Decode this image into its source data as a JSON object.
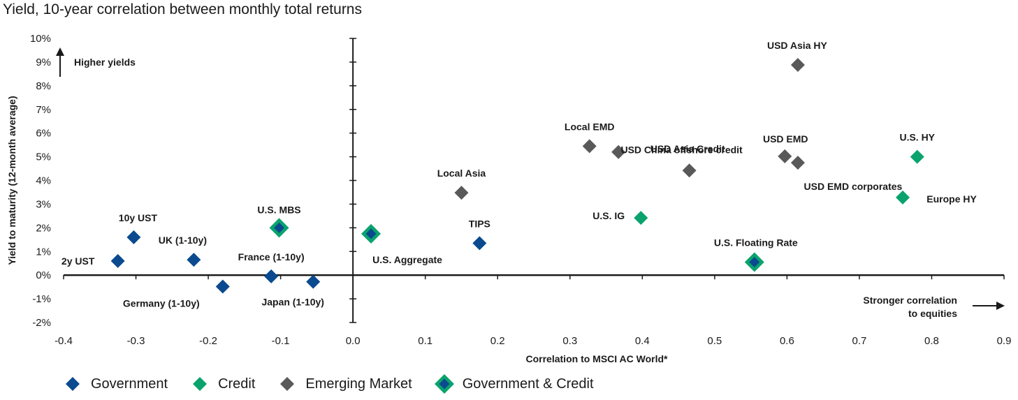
{
  "title": "Yield, 10-year correlation between monthly total returns",
  "colors": {
    "government": "#0b4a8f",
    "credit": "#0aa36d",
    "emerging": "#595959",
    "gov_credit_outer": "#0aa36d",
    "gov_credit_inner": "#0b4a8f"
  },
  "annotations": {
    "higher_yields": "Higher yields",
    "stronger_line1": "Stronger correlation",
    "stronger_line2": "to equities"
  },
  "legend": [
    {
      "key": "government",
      "label": "Government"
    },
    {
      "key": "credit",
      "label": "Credit"
    },
    {
      "key": "emerging",
      "label": "Emerging Market"
    },
    {
      "key": "gov_credit",
      "label": "Government & Credit"
    }
  ],
  "chart_data": {
    "type": "scatter",
    "title": "Yield, 10-year correlation between monthly total returns",
    "xlabel": "Correlation to MSCI AC World*",
    "ylabel": "Yield to maturity (12-month average)",
    "xlim": [
      -0.4,
      0.9
    ],
    "ylim": [
      -2,
      10
    ],
    "x_ticks": [
      "-0.4",
      "-0.3",
      "-0.2",
      "-0.1",
      "0.0",
      "0.1",
      "0.2",
      "0.3",
      "0.4",
      "0.5",
      "0.6",
      "0.7",
      "0.8",
      "0.9"
    ],
    "y_ticks": [
      "-2%",
      "-1%",
      "0%",
      "1%",
      "2%",
      "3%",
      "4%",
      "5%",
      "6%",
      "7%",
      "8%",
      "9%",
      "10%"
    ],
    "grid": false,
    "legend_position": "bottom",
    "points": [
      {
        "label": "2y UST",
        "x": -0.325,
        "y": 0.6,
        "category": "government"
      },
      {
        "label": "10y UST",
        "x": -0.303,
        "y": 1.6,
        "category": "government"
      },
      {
        "label": "UK (1-10y)",
        "x": -0.22,
        "y": 0.65,
        "category": "government"
      },
      {
        "label": "Germany (1-10y)",
        "x": -0.18,
        "y": -0.48,
        "category": "government"
      },
      {
        "label": "France (1-10y)",
        "x": -0.113,
        "y": -0.05,
        "category": "government"
      },
      {
        "label": "Japan (1-10y)",
        "x": -0.055,
        "y": -0.28,
        "category": "government"
      },
      {
        "label": "TIPS",
        "x": 0.175,
        "y": 1.35,
        "category": "government"
      },
      {
        "label": "U.S. MBS",
        "x": -0.102,
        "y": 2.0,
        "category": "gov_credit"
      },
      {
        "label": "U.S. Aggregate",
        "x": 0.025,
        "y": 1.75,
        "category": "gov_credit"
      },
      {
        "label": "U.S. Floating Rate",
        "x": 0.555,
        "y": 0.55,
        "category": "gov_credit"
      },
      {
        "label": "U.S. IG",
        "x": 0.398,
        "y": 2.42,
        "category": "credit"
      },
      {
        "label": "U.S. HY",
        "x": 0.78,
        "y": 5.0,
        "category": "credit"
      },
      {
        "label": "Europe HY",
        "x": 0.76,
        "y": 3.28,
        "category": "credit"
      },
      {
        "label": "Local Asia",
        "x": 0.15,
        "y": 3.48,
        "category": "emerging"
      },
      {
        "label": "Local EMD",
        "x": 0.327,
        "y": 5.45,
        "category": "emerging"
      },
      {
        "label": "USD Asia Credit",
        "x": 0.367,
        "y": 5.2,
        "category": "emerging"
      },
      {
        "label": "USD China offshore credit",
        "x": 0.465,
        "y": 4.42,
        "category": "emerging"
      },
      {
        "label": "USD EMD",
        "x": 0.597,
        "y": 5.02,
        "category": "emerging"
      },
      {
        "label": "USD EMD corporates",
        "x": 0.615,
        "y": 4.75,
        "category": "emerging"
      },
      {
        "label": "USD Asia HY",
        "x": 0.615,
        "y": 8.88,
        "category": "emerging"
      }
    ]
  }
}
